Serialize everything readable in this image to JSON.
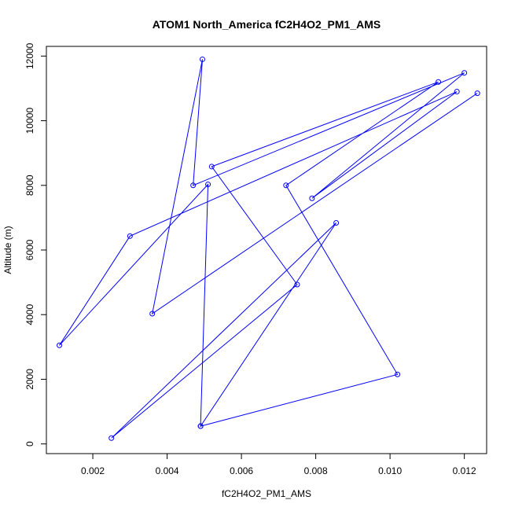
{
  "chart_data": {
    "type": "line",
    "title": "ATOM1 North_America fC2H4O2_PM1_AMS",
    "xlabel": "fC2H4O2_PM1_AMS",
    "ylabel": "Altitude (m)",
    "xlim": [
      0.00075,
      0.0126
    ],
    "ylim": [
      -300,
      12300
    ],
    "xticks": [
      0.002,
      0.004,
      0.006,
      0.008,
      0.01,
      0.012
    ],
    "xtick_labels": [
      "0.002",
      "0.004",
      "0.006",
      "0.008",
      "0.010",
      "0.012"
    ],
    "yticks": [
      0,
      2000,
      4000,
      6000,
      8000,
      10000,
      12000
    ],
    "ytick_labels": [
      "0",
      "2000",
      "4000",
      "6000",
      "8000",
      "10000",
      "12000"
    ],
    "grid": false,
    "line_color": "#0000ff",
    "marker": "open-circle",
    "series": [
      {
        "x": [
          0.0049,
          0.0102,
          0.0072,
          0.0113,
          0.0052,
          0.0075,
          0.0025,
          0.00855,
          0.0049,
          0.0051,
          0.0011,
          0.003,
          0.0118,
          0.0079,
          0.012,
          0.0047,
          0.00495,
          0.0036,
          0.01235
        ],
        "y": [
          550,
          2150,
          8000,
          11200,
          8580,
          4930,
          180,
          6840,
          550,
          8030,
          3050,
          6430,
          10900,
          7600,
          11480,
          8000,
          11900,
          4030,
          10850
        ]
      }
    ]
  }
}
